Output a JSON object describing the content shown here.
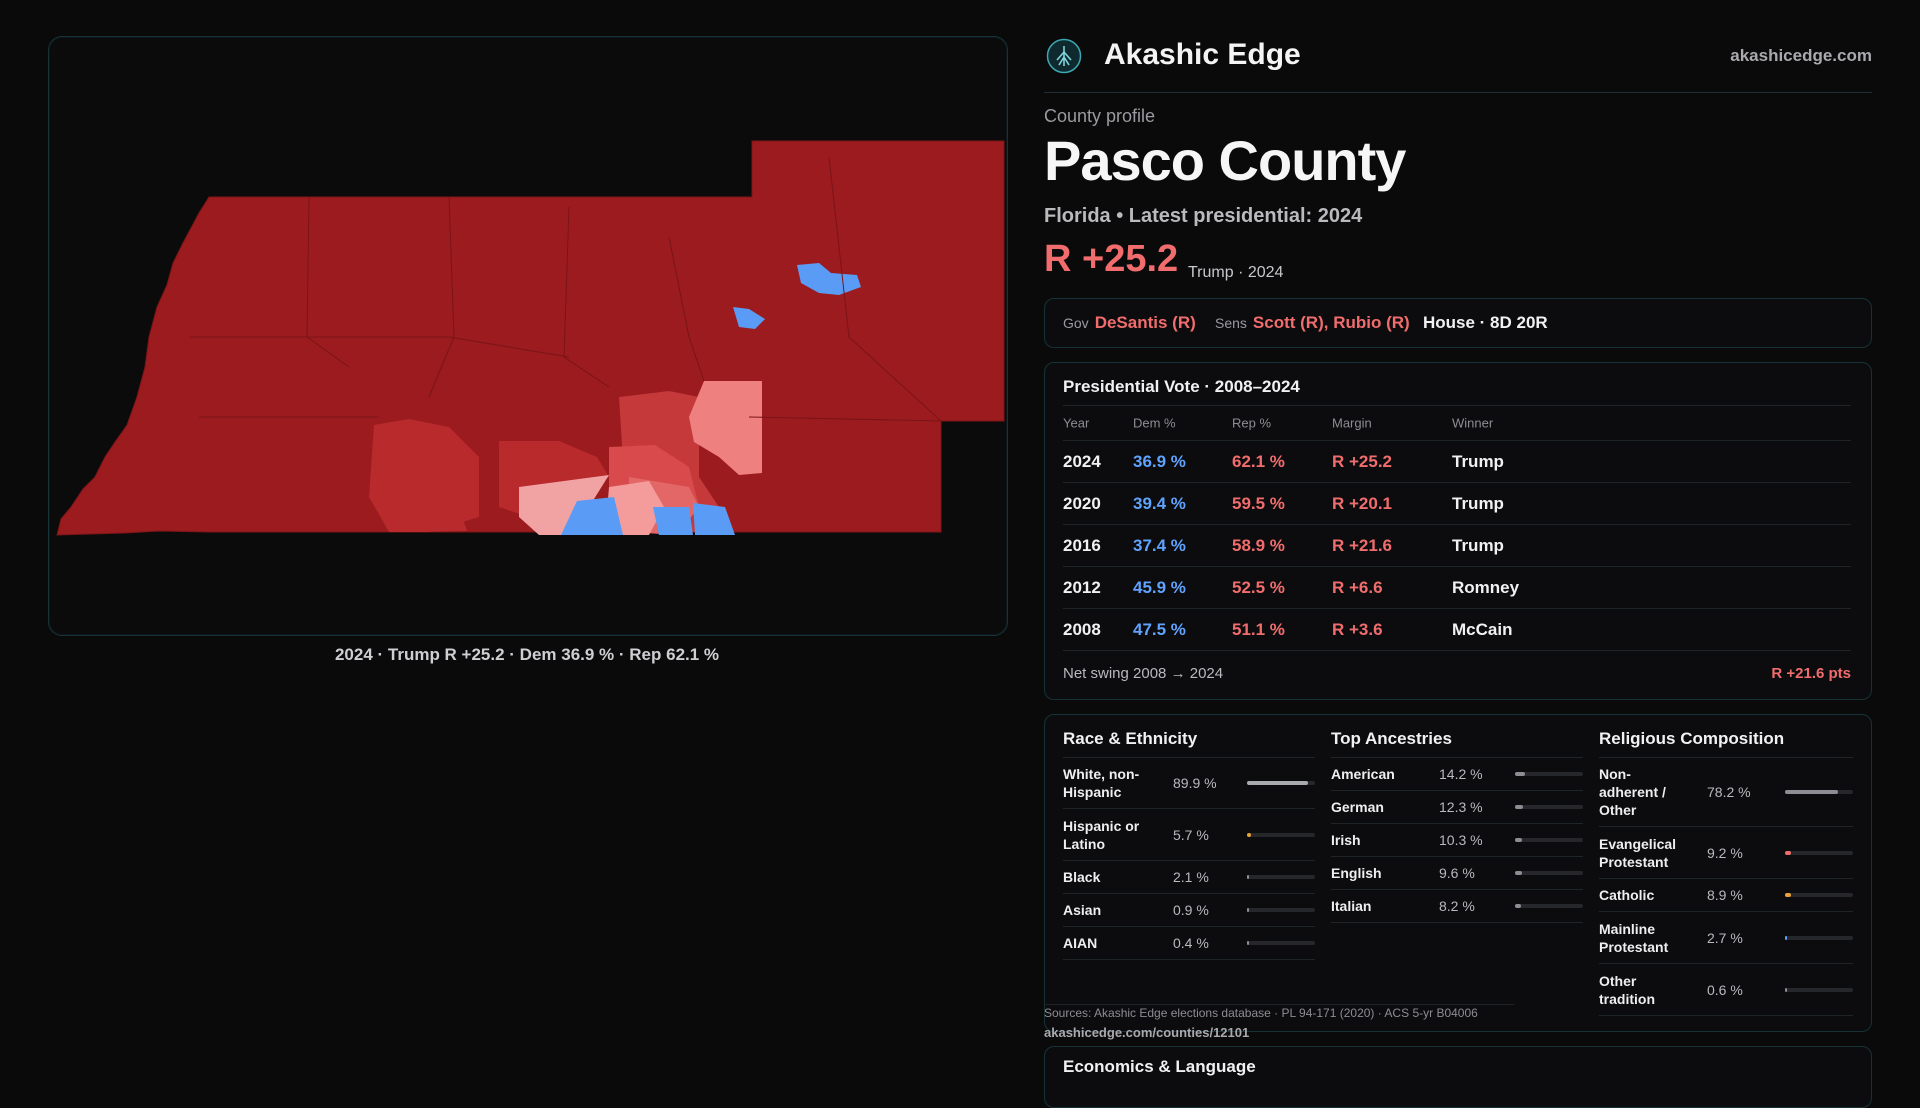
{
  "map": {
    "caption": "2024 · Trump R +25.2 · Dem 36.9 % · Rep 62.1 %"
  },
  "brand": {
    "name": "Akashic Edge",
    "url": "akashicedge.com",
    "logo_icon": "tree-logo-icon"
  },
  "profile": {
    "eyebrow": "County profile",
    "title": "Pasco County",
    "subtitle": "Florida • Latest presidential: 2024",
    "margin": "R +25.2",
    "margin_note": "Trump · 2024"
  },
  "officials": {
    "gov_label": "Gov",
    "gov": "DeSantis (R)",
    "sens_label": "Sens",
    "sens": "Scott (R), Rubio (R)",
    "house": "House · 8D 20R"
  },
  "presidential": {
    "title": "Presidential Vote · 2008–2024",
    "headers": [
      "Year",
      "Dem %",
      "Rep %",
      "Margin",
      "Winner"
    ],
    "rows": [
      {
        "year": "2024",
        "dem": "36.9 %",
        "rep": "62.1 %",
        "margin": "R +25.2",
        "winner": "Trump"
      },
      {
        "year": "2020",
        "dem": "39.4 %",
        "rep": "59.5 %",
        "margin": "R +20.1",
        "winner": "Trump"
      },
      {
        "year": "2016",
        "dem": "37.4 %",
        "rep": "58.9 %",
        "margin": "R +21.6",
        "winner": "Trump"
      },
      {
        "year": "2012",
        "dem": "45.9 %",
        "rep": "52.5 %",
        "margin": "R +6.6",
        "winner": "Romney"
      },
      {
        "year": "2008",
        "dem": "47.5 %",
        "rep": "51.1 %",
        "margin": "R +3.6",
        "winner": "McCain"
      }
    ],
    "swing_label": "Net swing 2008 → 2024",
    "swing_value": "R +21.6 pts"
  },
  "race": {
    "title": "Race & Ethnicity",
    "items": [
      {
        "label": "White, non-Hispanic",
        "value": "89.9 %",
        "pct": 89.9,
        "color": "#a9a9b0"
      },
      {
        "label": "Hispanic or Latino",
        "value": "5.7 %",
        "pct": 5.7,
        "color": "#e8a13a"
      },
      {
        "label": "Black",
        "value": "2.1 %",
        "pct": 2.1,
        "color": "#8d8d93"
      },
      {
        "label": "Asian",
        "value": "0.9 %",
        "pct": 0.9,
        "color": "#8d8d93"
      },
      {
        "label": "AIAN",
        "value": "0.4 %",
        "pct": 0.4,
        "color": "#8d8d93"
      }
    ]
  },
  "ancestry": {
    "title": "Top Ancestries",
    "items": [
      {
        "label": "American",
        "value": "14.2 %",
        "pct": 14.2
      },
      {
        "label": "German",
        "value": "12.3 %",
        "pct": 12.3
      },
      {
        "label": "Irish",
        "value": "10.3 %",
        "pct": 10.3
      },
      {
        "label": "English",
        "value": "9.6 %",
        "pct": 9.6
      },
      {
        "label": "Italian",
        "value": "8.2 %",
        "pct": 8.2
      }
    ]
  },
  "religion": {
    "title": "Religious Composition",
    "items": [
      {
        "label": "Non-adherent / Other",
        "value": "78.2 %",
        "pct": 78.2,
        "color": "#8d8d93"
      },
      {
        "label": "Evangelical Protestant",
        "value": "9.2 %",
        "pct": 9.2,
        "color": "#f16d6d"
      },
      {
        "label": "Catholic",
        "value": "8.9 %",
        "pct": 8.9,
        "color": "#e8a13a"
      },
      {
        "label": "Mainline Protestant",
        "value": "2.7 %",
        "pct": 2.7,
        "color": "#5fa3ff"
      },
      {
        "label": "Other tradition",
        "value": "0.6 %",
        "pct": 0.6,
        "color": "#8d8d93"
      }
    ]
  },
  "sources": {
    "text": "Sources: Akashic Edge elections database · PL 94-171 (2020) · ACS 5-yr B04006",
    "url": "akashicedge.com/counties/12101"
  },
  "econ": {
    "title": "Economics & Language"
  },
  "colors": {
    "rep": "#f16d6d",
    "dem": "#5fa3ff",
    "accent": "#173236"
  }
}
